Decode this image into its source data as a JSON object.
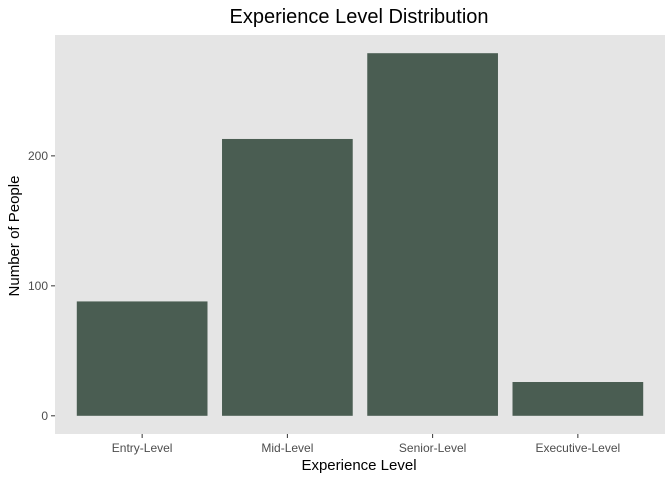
{
  "chart_data": {
    "type": "bar",
    "title": "Experience Level Distribution",
    "xlabel": "Experience Level",
    "ylabel": "Number of People",
    "categories": [
      "Entry-Level",
      "Mid-Level",
      "Senior-Level",
      "Executive-Level"
    ],
    "values": [
      88,
      213,
      279,
      26
    ],
    "ylim": [
      -14,
      293
    ],
    "yticks": [
      0,
      100,
      200
    ],
    "grid": false,
    "legend": "none",
    "colors": {
      "bar": "#4a5d52",
      "panel": "#e5e5e5",
      "background": "#ffffff"
    }
  }
}
